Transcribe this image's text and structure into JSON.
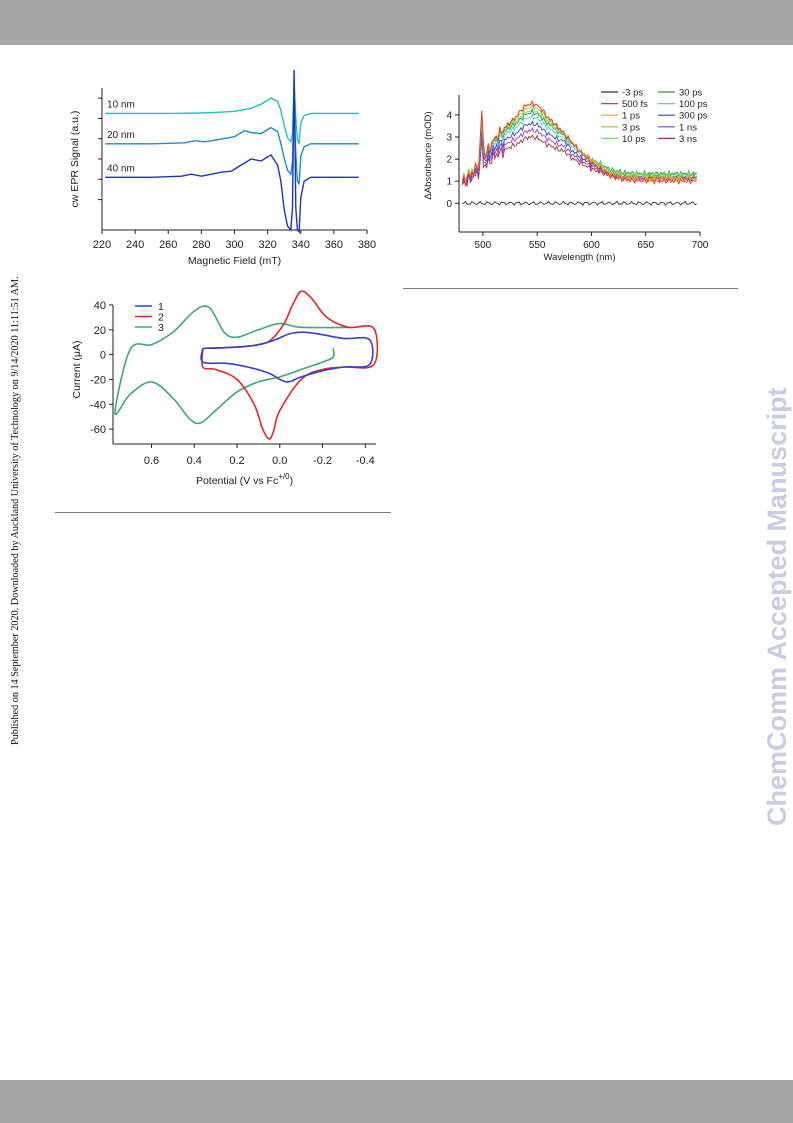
{
  "side_note": "Published on 14 September 2020. Downloaded by Auckland University of Technology on 9/14/2020 11:11:51 AM.",
  "watermark": "ChemComm Accepted Manuscript",
  "chart_data": [
    {
      "type": "line",
      "id": "epr",
      "xlabel": "Magnetic Field (mT)",
      "ylabel": "cw EPR Signal (a.u.)",
      "xlim": [
        220,
        380
      ],
      "xticks": [
        220,
        240,
        260,
        280,
        300,
        320,
        340,
        360,
        380
      ],
      "ylim": [
        -2.5,
        4.5
      ],
      "yticks": [
        -1,
        0,
        1,
        2,
        3,
        4
      ],
      "series": [
        {
          "name": "10 nm",
          "color": "#1fc4c1",
          "offset": 3.25,
          "x": [
            222,
            240,
            260,
            280,
            290,
            300,
            310,
            316,
            322,
            326,
            328,
            330,
            332,
            334,
            335,
            336,
            337,
            338,
            339,
            340,
            342,
            346,
            360,
            375
          ],
          "y": [
            0,
            0,
            0,
            0.02,
            0.05,
            0.1,
            0.25,
            0.45,
            0.75,
            0.6,
            0.15,
            -0.6,
            -1.2,
            -1.4,
            -1.0,
            1.6,
            -0.2,
            -1.3,
            -1.5,
            -0.5,
            -0.1,
            0,
            0,
            0
          ]
        },
        {
          "name": "20 nm",
          "color": "#1c8bd0",
          "offset": 1.75,
          "x": [
            222,
            250,
            270,
            276,
            282,
            290,
            300,
            306,
            310,
            316,
            322,
            326,
            328,
            330,
            332,
            334,
            335,
            336,
            337,
            338,
            339,
            340,
            342,
            346,
            360,
            375
          ],
          "y": [
            0,
            0,
            0.05,
            0.15,
            0.1,
            0.2,
            0.35,
            0.65,
            0.55,
            0.5,
            0.8,
            0.6,
            0.0,
            -0.7,
            -1.3,
            -1.5,
            -0.9,
            2.0,
            -0.5,
            -1.8,
            -2.0,
            -0.6,
            -0.15,
            0,
            0,
            0
          ]
        },
        {
          "name": "40 nm",
          "color": "#1a35c2",
          "offset": 0.1,
          "x": [
            222,
            250,
            268,
            274,
            280,
            286,
            292,
            298,
            304,
            310,
            316,
            322,
            326,
            328,
            330,
            332,
            334,
            335,
            336,
            337,
            338,
            339,
            340,
            342,
            346,
            360,
            375
          ],
          "y": [
            0,
            0,
            0.05,
            0.15,
            0.05,
            0.15,
            0.25,
            0.3,
            0.6,
            0.9,
            0.8,
            1.1,
            0.6,
            -0.2,
            -1.6,
            -2.4,
            -2.6,
            -1.5,
            5.3,
            -1.5,
            -2.6,
            -2.7,
            -1.0,
            -0.2,
            0,
            0,
            0
          ]
        }
      ],
      "annotations": [
        "10 nm",
        "20 nm",
        "40 nm"
      ]
    },
    {
      "type": "line",
      "id": "transient-absorption",
      "xlabel": "Wavelength (nm)",
      "ylabel": "ΔAbsorbance (mOD)",
      "xlim": [
        478,
        700
      ],
      "xticks": [
        500,
        550,
        600,
        650,
        700
      ],
      "ylim": [
        -1.3,
        4.9
      ],
      "yticks": [
        0,
        1,
        2,
        3,
        4
      ],
      "legend_position": "top-right",
      "series": [
        {
          "name": "-3 ps",
          "color": "#333333",
          "peak": 0,
          "shoulder": 0,
          "tail": 0
        },
        {
          "name": "500 fs",
          "color": "#e8382f",
          "peak": 4.5,
          "shoulder": 3.4,
          "tail": 1.0
        },
        {
          "name": "1 ps",
          "color": "#f4a02a",
          "peak": 4.5,
          "shoulder": 3.5,
          "tail": 1.1
        },
        {
          "name": "3 ps",
          "color": "#a9c23f",
          "peak": 4.35,
          "shoulder": 3.6,
          "tail": 1.2
        },
        {
          "name": "10 ps",
          "color": "#6ee06e",
          "peak": 4.2,
          "shoulder": 3.7,
          "tail": 1.3
        },
        {
          "name": "30 ps",
          "color": "#2e9d3a",
          "peak": 4.1,
          "shoulder": 3.75,
          "tail": 1.35
        },
        {
          "name": "100 ps",
          "color": "#3fd6d0",
          "peak": 3.9,
          "shoulder": 3.6,
          "tail": 1.3
        },
        {
          "name": "300 ps",
          "color": "#3048c8",
          "peak": 3.6,
          "shoulder": 3.5,
          "tail": 1.2
        },
        {
          "name": "1 ns",
          "color": "#9a3cc6",
          "peak": 3.3,
          "shoulder": 3.2,
          "tail": 1.15
        },
        {
          "name": "3 ns",
          "color": "#a8323a",
          "peak": 3.0,
          "shoulder": 2.95,
          "tail": 1.1
        }
      ]
    },
    {
      "type": "line",
      "id": "cyclic-voltammetry",
      "xlabel": "Potential (V vs Fc",
      "xlabel_sup": "+/0",
      "xlabel_end": ")",
      "ylabel": "Current (μA)",
      "xlim": [
        0.78,
        -0.45
      ],
      "xticks": [
        0.6,
        0.4,
        0.2,
        0.0,
        -0.2,
        -0.4
      ],
      "xtick_labels": [
        "0.6",
        "0.4",
        "0.2",
        "0.0",
        "-0.2",
        "-0.4"
      ],
      "ylim": [
        -72,
        48
      ],
      "yticks": [
        40,
        20,
        0,
        -20,
        -40,
        -60
      ],
      "legend_position": "top-left",
      "series": [
        {
          "name": "1",
          "color": "#3b3bd6",
          "x": [
            0.36,
            0.2,
            0.1,
            0.02,
            -0.05,
            -0.12,
            -0.2,
            -0.3,
            -0.42,
            -0.42,
            -0.3,
            -0.2,
            -0.1,
            -0.04,
            0.0,
            0.05,
            0.15,
            0.25,
            0.36,
            0.36
          ],
          "y": [
            5,
            6,
            8,
            12,
            17,
            18,
            16,
            13,
            12,
            -8,
            -10,
            -13,
            -18,
            -22,
            -20,
            -15,
            -10,
            -7,
            -6,
            5
          ]
        },
        {
          "name": "2",
          "color": "#e02828",
          "x": [
            0.36,
            0.2,
            0.1,
            0.04,
            -0.02,
            -0.06,
            -0.1,
            -0.15,
            -0.22,
            -0.32,
            -0.44,
            -0.44,
            -0.3,
            -0.2,
            -0.1,
            0.0,
            0.03,
            0.05,
            0.08,
            0.12,
            0.2,
            0.3,
            0.36,
            0.36
          ],
          "y": [
            5,
            6,
            8,
            12,
            25,
            40,
            51,
            45,
            30,
            22,
            21,
            -8,
            -10,
            -12,
            -20,
            -45,
            -62,
            -68,
            -60,
            -40,
            -20,
            -12,
            -10,
            5
          ]
        },
        {
          "name": "3",
          "color": "#3ca874",
          "x": [
            -0.33,
            -0.1,
            0.0,
            0.1,
            0.2,
            0.26,
            0.33,
            0.4,
            0.5,
            0.6,
            0.7,
            0.77,
            0.7,
            0.6,
            0.5,
            0.42,
            0.37,
            0.3,
            0.2,
            0.1,
            0.0,
            -0.1,
            -0.2,
            -0.25,
            -0.25
          ],
          "y": [
            22,
            22,
            25,
            20,
            14,
            18,
            38,
            35,
            18,
            8,
            4,
            -47,
            -32,
            -22,
            -35,
            -52,
            -55,
            -45,
            -30,
            -22,
            -18,
            -12,
            -6,
            -2,
            5
          ]
        }
      ]
    }
  ]
}
